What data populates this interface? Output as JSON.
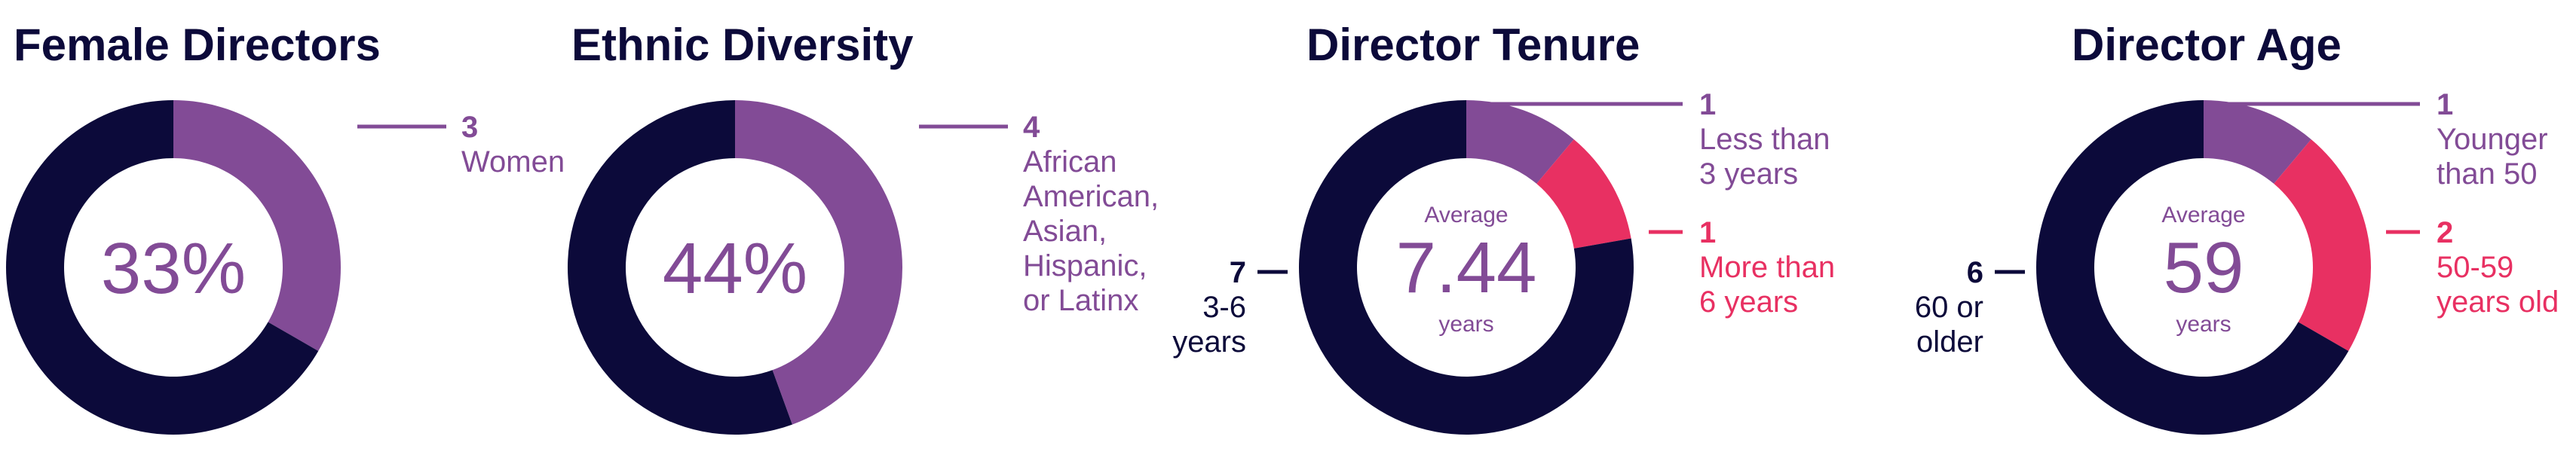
{
  "colors": {
    "navy": "#0c0a3a",
    "purple": "#824b96",
    "pink": "#e83062",
    "white": "#ffffff"
  },
  "chart_data": [
    {
      "type": "pie",
      "title": "Female Directors",
      "center": {
        "value": "33%"
      },
      "slices": [
        {
          "value": 3,
          "label_value": "3",
          "label_text": [
            "Women"
          ],
          "color": "#824b96"
        },
        {
          "value": 6,
          "color": "#0c0a3a"
        }
      ]
    },
    {
      "type": "pie",
      "title": "Ethnic Diversity",
      "center": {
        "value": "44%"
      },
      "slices": [
        {
          "value": 4,
          "label_value": "4",
          "label_text": [
            "African",
            "American,",
            "Asian,",
            "Hispanic,",
            "or Latinx"
          ],
          "color": "#824b96"
        },
        {
          "value": 5,
          "color": "#0c0a3a"
        }
      ]
    },
    {
      "type": "pie",
      "title": "Director Tenure",
      "center": {
        "top": "Average",
        "value": "7.44",
        "bottom": "years"
      },
      "slices": [
        {
          "value": 1,
          "label_value": "1",
          "label_text": [
            "Less than",
            "3 years"
          ],
          "color": "#824b96"
        },
        {
          "value": 1,
          "label_value": "1",
          "label_text": [
            "More than",
            "6 years"
          ],
          "color": "#e83062"
        },
        {
          "value": 7,
          "label_value": "7",
          "label_text": [
            "3-6",
            "years"
          ],
          "color": "#0c0a3a"
        }
      ]
    },
    {
      "type": "pie",
      "title": "Director Age",
      "center": {
        "top": "Average",
        "value": "59",
        "bottom": "years"
      },
      "slices": [
        {
          "value": 1,
          "label_value": "1",
          "label_text": [
            "Younger",
            "than 50"
          ],
          "color": "#824b96"
        },
        {
          "value": 2,
          "label_value": "2",
          "label_text": [
            "50-59",
            "years old"
          ],
          "color": "#e83062"
        },
        {
          "value": 6,
          "label_value": "6",
          "label_text": [
            "60 or",
            "older"
          ],
          "color": "#0c0a3a"
        }
      ]
    }
  ]
}
